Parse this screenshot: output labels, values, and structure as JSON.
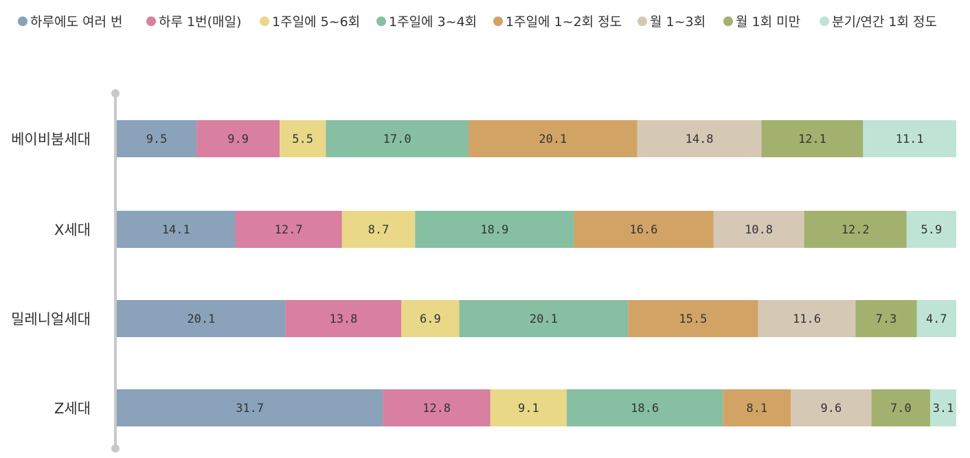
{
  "chart_data": {
    "type": "bar",
    "orientation": "horizontal",
    "stacked": true,
    "title": "",
    "xlabel": "",
    "ylabel": "",
    "legend_position": "top",
    "grid": false,
    "xlim": [
      0,
      100
    ],
    "categories": [
      "베이비붐세대",
      "X세대",
      "밀레니얼세대",
      "Z세대"
    ],
    "series": [
      {
        "name": "하루에도 여러 번",
        "color": "#8AA2BA",
        "values": [
          9.5,
          14.1,
          20.1,
          31.7
        ]
      },
      {
        "name": "하루 1번(매일)",
        "color": "#D97FA0",
        "values": [
          9.9,
          12.7,
          13.8,
          12.8
        ]
      },
      {
        "name": "1주일에 5~6회",
        "color": "#E9D887",
        "values": [
          5.5,
          8.7,
          6.9,
          9.1
        ]
      },
      {
        "name": "1주일에 3~4회",
        "color": "#86BFA2",
        "values": [
          17.0,
          18.9,
          20.1,
          18.6
        ]
      },
      {
        "name": "1주일에 1~2회 정도",
        "color": "#D1A466",
        "values": [
          20.1,
          16.6,
          15.5,
          8.1
        ]
      },
      {
        "name": "월 1~3회",
        "color": "#D5C8B5",
        "values": [
          14.8,
          10.8,
          11.6,
          9.6
        ]
      },
      {
        "name": "월 1회 미만",
        "color": "#A3B16E",
        "values": [
          12.1,
          12.2,
          7.3,
          7.0
        ]
      },
      {
        "name": "분기/연간 1회 정도",
        "color": "#BFE4D6",
        "values": [
          11.1,
          5.9,
          4.7,
          3.1
        ]
      }
    ],
    "data_labels": [
      [
        "9.5",
        "9.9",
        "5.5",
        "17.0",
        "20.1",
        "14.8",
        "12.1",
        "11.1"
      ],
      [
        "14.1",
        "12.7",
        "8.7",
        "18.9",
        "16.6",
        "10.8",
        "12.2",
        "5.9"
      ],
      [
        "20.1",
        "13.8",
        "6.9",
        "20.1",
        "15.5",
        "11.6",
        "7.3",
        "4.7"
      ],
      [
        "31.7",
        "12.8",
        "9.1",
        "18.6",
        "8.1",
        "9.6",
        "7.0",
        "3.1"
      ]
    ]
  }
}
